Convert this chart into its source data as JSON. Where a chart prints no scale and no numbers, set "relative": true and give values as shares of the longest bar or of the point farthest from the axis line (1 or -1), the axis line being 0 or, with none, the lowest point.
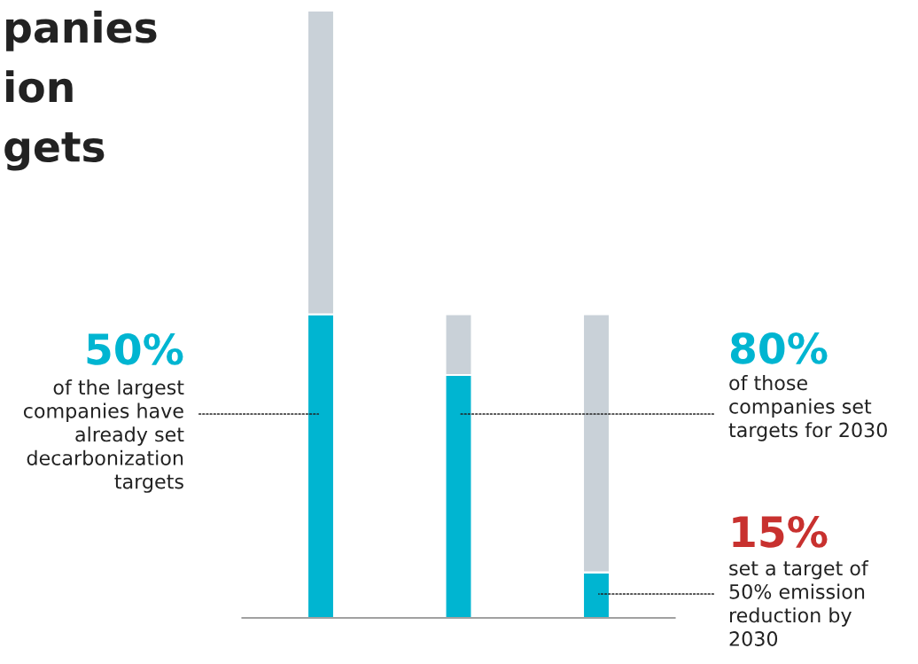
{
  "chart_data": {
    "type": "bar",
    "title": "panies\nion\ngets",
    "relative": true,
    "stacked": true,
    "categories": [
      null,
      null,
      null
    ],
    "series": [
      {
        "color": "#00b5d1",
        "values": [
          0.5,
          0.4,
          0.075
        ]
      },
      {
        "color": "#c9d1d8",
        "values": [
          0.5,
          0.1,
          0.425
        ]
      }
    ],
    "annotations": [
      "50%",
      "of the largest\ncompanies have\nalready set\ndecarbonization\ntargets",
      "80%",
      "of those\ncompanies set\ntargets for 2030",
      "15%",
      "set a target of\n50% emission\nreduction by\n2030"
    ]
  }
}
